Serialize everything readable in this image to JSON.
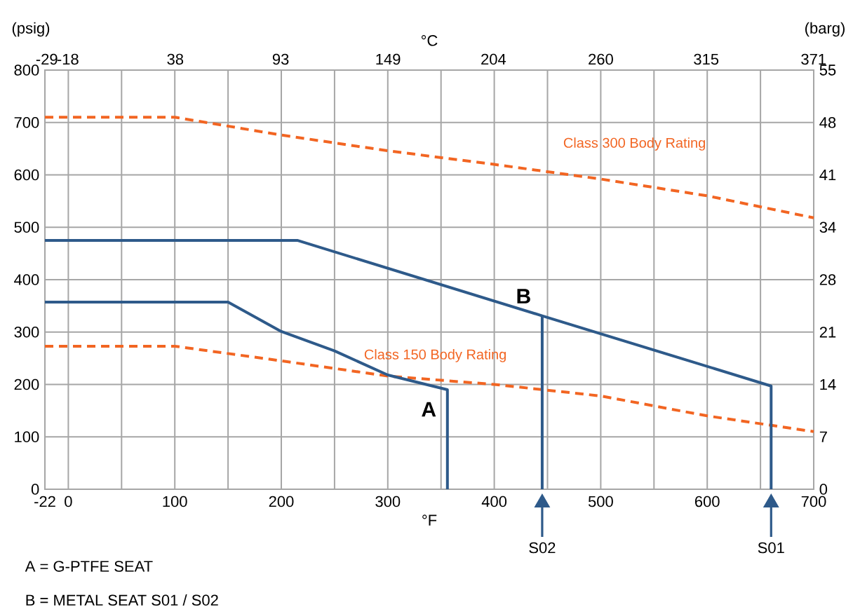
{
  "chart_data": {
    "type": "line",
    "xlabel": "°F",
    "x2label": "°C",
    "ylabel": "(psig)",
    "y2label": "(barg)",
    "xlim": [
      -22,
      700
    ],
    "xticks": [
      -22,
      0,
      {
        "value": 50,
        "label": null
      },
      100,
      {
        "value": 150,
        "label": null
      },
      200,
      {
        "value": 250,
        "label": null
      },
      300,
      {
        "value": 350,
        "label": null
      },
      400,
      {
        "value": 450,
        "label": null
      },
      500,
      {
        "value": 550,
        "label": null
      },
      600,
      {
        "value": 650,
        "label": null
      },
      700
    ],
    "x2lim": [
      -30,
      371.1
    ],
    "x2ticks": [
      -29,
      -18,
      38,
      93,
      149,
      204,
      260,
      315,
      371
    ],
    "ylim": [
      0,
      800
    ],
    "yticks": [
      0,
      100,
      200,
      300,
      400,
      500,
      600,
      700,
      800
    ],
    "y2lim": [
      0,
      55.16
    ],
    "y2ticks": [
      {
        "value": 0,
        "label": "0"
      },
      {
        "value": 6.89,
        "label": "7"
      },
      {
        "value": 13.79,
        "label": "14"
      },
      {
        "value": 20.68,
        "label": "21"
      },
      {
        "value": 27.58,
        "label": "28"
      },
      {
        "value": 34.47,
        "label": "34"
      },
      {
        "value": 41.37,
        "label": "41"
      },
      {
        "value": 48.26,
        "label": "48"
      },
      {
        "value": 55.16,
        "label": "55"
      }
    ],
    "grid": true,
    "legend": false,
    "marker": "none",
    "series": [
      {
        "name": "Class 300 Body Rating",
        "color": "#f26522",
        "line_style": "dashed",
        "x": [
          -22,
          100,
          200,
          300,
          400,
          500,
          600,
          700
        ],
        "values": [
          710,
          710,
          676,
          646,
          620,
          592,
          560,
          518
        ]
      },
      {
        "name": "Class 150 Body Rating",
        "color": "#f26522",
        "line_style": "dashed",
        "x": [
          -22,
          100,
          200,
          300,
          400,
          500,
          600,
          700
        ],
        "values": [
          273,
          273,
          245,
          216,
          200,
          178,
          140,
          110
        ]
      },
      {
        "color": "#2e5a8a",
        "line_style": "solid",
        "x": [
          -22,
          150,
          200,
          250,
          300,
          356,
          356
        ],
        "values": [
          357,
          357,
          301,
          264,
          218,
          190,
          0
        ]
      },
      {
        "color": "#2e5a8a",
        "line_style": "solid",
        "x": [
          -22,
          215,
          445,
          660,
          660
        ],
        "values": [
          475,
          475,
          331,
          197,
          0
        ]
      },
      {
        "color": "#2e5a8a",
        "line_style": "solid",
        "x": [
          445,
          445
        ],
        "values": [
          331,
          0
        ]
      }
    ],
    "annotations": [
      {
        "text": "A",
        "x": 356,
        "y": 190
      },
      {
        "text": "B",
        "x": 445,
        "y": 331
      },
      "S02",
      "S01",
      "A = G-PTFE SEAT",
      "B = METAL SEAT  S01 / S02"
    ]
  }
}
